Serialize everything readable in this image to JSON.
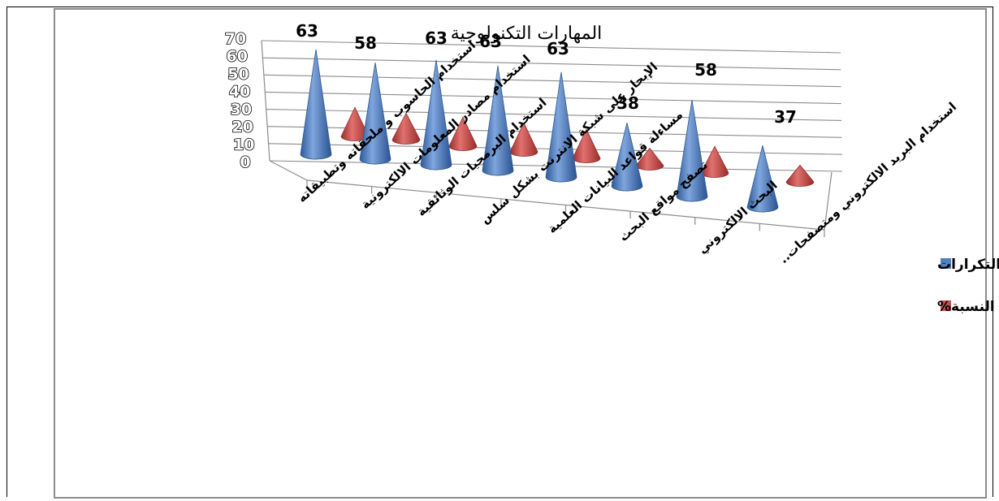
{
  "chart_data": {
    "type": "bar",
    "style": "3d-cone",
    "title": "المهارات التكنولوجية",
    "categories": [
      "استخدام الحاسوب و ملحقاته وتطبيقاته",
      "استخدام مصادر المعلومات الالكترونية",
      "استخدام البرمجيات الوثائقية",
      "الإبحار على شبكة الانترنت بشكل سلس",
      "مساءلة قواعد البيانات العلمية",
      "تصفح مواقع البحث",
      "البحث الالكتروني",
      "استخدام البريد الالكتروني ومتصفحات.."
    ],
    "series": [
      {
        "name": "التكرارات",
        "values": [
          63,
          58,
          63,
          63,
          63,
          38,
          58,
          37
        ],
        "color": "#4f81bd"
      },
      {
        "name": "النسبة%",
        "values": [
          17.0,
          15.6,
          17.0,
          17.0,
          17.0,
          10.2,
          15.6,
          9.8
        ],
        "color": "#c0504d"
      }
    ],
    "data_labels": [
      "63",
      "58",
      "63",
      "63",
      "63",
      "38",
      "58",
      "37"
    ],
    "ylim": [
      0,
      70
    ],
    "yticks": [
      "0",
      "10",
      "20",
      "30",
      "40",
      "50",
      "60",
      "70"
    ],
    "grid": true,
    "legend": "right"
  }
}
